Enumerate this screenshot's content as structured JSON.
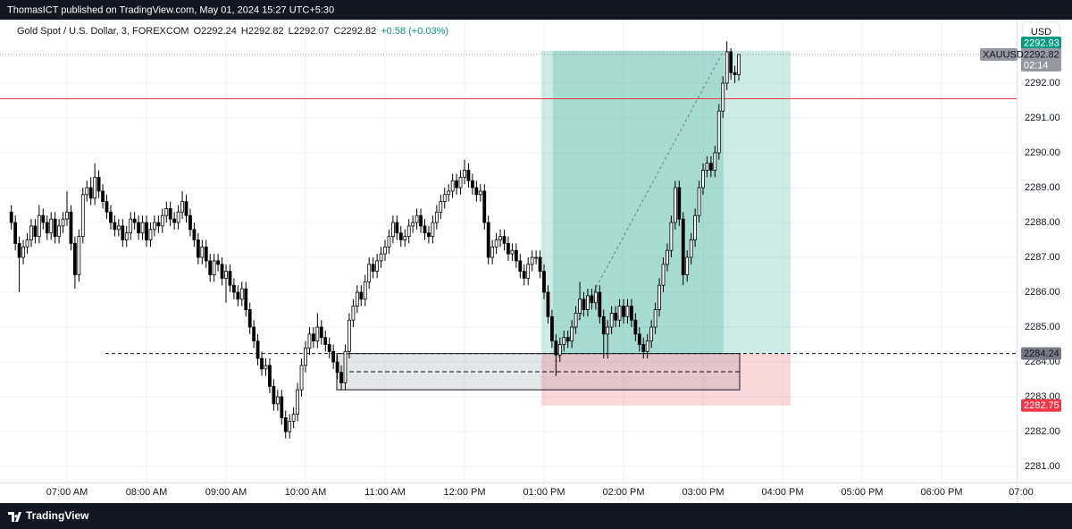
{
  "header": "ThomasICT published on TradingView.com, May 01, 2024 15:27 UTC+5:30",
  "footer_logo": "TradingView",
  "chart_data": {
    "type": "candlestick",
    "symbol": "Gold Spot / U.S. Dollar, 3, FOREXCOM",
    "legend_values": [
      "O2292.24",
      "H2292.82",
      "L2292.07",
      "C2292.82",
      "+0.58 (+0.03%)"
    ],
    "currency": "USD",
    "x": [
      "06:18 AM",
      "06:21 AM",
      "06:24 AM",
      "06:27 AM",
      "06:30 AM",
      "06:33 AM",
      "06:36 AM",
      "06:39 AM",
      "06:42 AM",
      "06:45 AM",
      "06:48 AM",
      "06:51 AM",
      "06:54 AM",
      "06:57 AM",
      "07:00 AM",
      "07:03 AM",
      "07:06 AM",
      "07:09 AM",
      "07:12 AM",
      "07:15 AM",
      "07:18 AM",
      "07:21 AM",
      "07:24 AM",
      "07:27 AM",
      "07:30 AM",
      "07:33 AM",
      "07:36 AM",
      "07:39 AM",
      "07:42 AM",
      "07:45 AM",
      "07:48 AM",
      "07:51 AM",
      "07:54 AM",
      "07:57 AM",
      "08:00 AM",
      "08:03 AM",
      "08:06 AM",
      "08:09 AM",
      "08:12 AM",
      "08:15 AM",
      "08:18 AM",
      "08:21 AM",
      "08:24 AM",
      "08:27 AM",
      "08:30 AM",
      "08:33 AM",
      "08:36 AM",
      "08:39 AM",
      "08:42 AM",
      "08:45 AM",
      "08:48 AM",
      "08:51 AM",
      "08:54 AM",
      "08:57 AM",
      "09:00 AM",
      "09:03 AM",
      "09:06 AM",
      "09:09 AM",
      "09:12 AM",
      "09:15 AM",
      "09:18 AM",
      "09:21 AM",
      "09:24 AM",
      "09:27 AM",
      "09:30 AM",
      "09:33 AM",
      "09:36 AM",
      "09:39 AM",
      "09:42 AM",
      "09:45 AM",
      "09:48 AM",
      "09:51 AM",
      "09:54 AM",
      "09:57 AM",
      "10:00 AM",
      "10:03 AM",
      "10:06 AM",
      "10:09 AM",
      "10:12 AM",
      "10:15 AM",
      "10:18 AM",
      "10:21 AM",
      "10:24 AM",
      "10:27 AM",
      "10:30 AM",
      "10:33 AM",
      "10:36 AM",
      "10:39 AM",
      "10:42 AM",
      "10:45 AM",
      "10:48 AM",
      "10:51 AM",
      "10:54 AM",
      "10:57 AM",
      "11:00 AM",
      "11:03 AM",
      "11:06 AM",
      "11:09 AM",
      "11:12 AM",
      "11:15 AM",
      "11:18 AM",
      "11:21 AM",
      "11:24 AM",
      "11:27 AM",
      "11:30 AM",
      "11:33 AM",
      "11:36 AM",
      "11:39 AM",
      "11:42 AM",
      "11:45 AM",
      "11:48 AM",
      "11:51 AM",
      "11:54 AM",
      "11:57 AM",
      "12:00 PM",
      "12:03 PM",
      "12:06 PM",
      "12:09 PM",
      "12:12 PM",
      "12:15 PM",
      "12:18 PM",
      "12:21 PM",
      "12:24 PM",
      "12:27 PM",
      "12:30 PM",
      "12:33 PM",
      "12:36 PM",
      "12:39 PM",
      "12:42 PM",
      "12:45 PM",
      "12:48 PM",
      "12:51 PM",
      "12:54 PM",
      "12:57 PM",
      "01:00 PM",
      "01:03 PM",
      "01:06 PM",
      "01:09 PM",
      "01:12 PM",
      "01:15 PM",
      "01:18 PM",
      "01:21 PM",
      "01:24 PM",
      "01:27 PM",
      "01:30 PM",
      "01:33 PM",
      "01:36 PM",
      "01:39 PM",
      "01:42 PM",
      "01:45 PM",
      "01:48 PM",
      "01:51 PM",
      "01:54 PM",
      "01:57 PM",
      "02:00 PM",
      "02:03 PM",
      "02:06 PM",
      "02:09 PM",
      "02:12 PM",
      "02:15 PM",
      "02:18 PM",
      "02:21 PM",
      "02:24 PM",
      "02:27 PM",
      "02:30 PM",
      "02:33 PM",
      "02:36 PM",
      "02:39 PM",
      "02:42 PM",
      "02:45 PM",
      "02:48 PM",
      "02:51 PM",
      "02:54 PM",
      "02:57 PM",
      "03:00 PM",
      "03:03 PM",
      "03:06 PM",
      "03:09 PM",
      "03:12 PM",
      "03:15 PM",
      "03:18 PM",
      "03:21 PM",
      "03:24 PM",
      "03:27 PM"
    ],
    "open": [
      2288.3,
      2288.0,
      2287.4,
      2287.0,
      2287.3,
      2287.5,
      2287.9,
      2287.6,
      2288.2,
      2288.0,
      2287.7,
      2288.1,
      2287.6,
      2287.9,
      2288.1,
      2288.3,
      2287.4,
      2286.5,
      2287.6,
      2288.8,
      2289.0,
      2288.7,
      2289.3,
      2288.9,
      2288.6,
      2288.3,
      2288.0,
      2287.8,
      2287.9,
      2287.5,
      2287.7,
      2288.1,
      2288.0,
      2287.7,
      2288.0,
      2287.5,
      2287.8,
      2288.0,
      2287.9,
      2288.2,
      2288.4,
      2288.1,
      2288.0,
      2288.3,
      2288.6,
      2288.2,
      2287.8,
      2287.5,
      2287.0,
      2287.3,
      2286.9,
      2286.5,
      2286.9,
      2286.8,
      2286.4,
      2286.6,
      2286.2,
      2286.0,
      2285.8,
      2286.1,
      2285.5,
      2285.0,
      2284.6,
      2284.1,
      2283.8,
      2283.9,
      2283.3,
      2282.8,
      2283.0,
      2282.4,
      2282.0,
      2282.3,
      2282.5,
      2283.2,
      2283.9,
      2284.4,
      2284.8,
      2284.6,
      2285.0,
      2284.7,
      2284.5,
      2284.3,
      2284.0,
      2283.7,
      2283.4,
      2284.3,
      2285.2,
      2285.6,
      2286.0,
      2285.8,
      2286.3,
      2286.8,
      2286.6,
      2286.9,
      2287.1,
      2287.3,
      2287.6,
      2288.0,
      2287.7,
      2287.5,
      2287.6,
      2287.9,
      2288.0,
      2288.2,
      2287.9,
      2287.7,
      2287.6,
      2288.0,
      2288.3,
      2288.6,
      2288.8,
      2288.9,
      2289.2,
      2289.0,
      2289.3,
      2289.5,
      2289.2,
      2289.0,
      2288.8,
      2288.9,
      2288.0,
      2287.0,
      2287.3,
      2287.5,
      2287.6,
      2287.4,
      2287.1,
      2287.2,
      2286.9,
      2286.6,
      2286.4,
      2286.8,
      2287.0,
      2287.0,
      2286.6,
      2286.0,
      2285.3,
      2284.6,
      2284.2,
      2284.5,
      2284.7,
      2284.6,
      2285.0,
      2285.4,
      2285.8,
      2285.5,
      2285.9,
      2285.7,
      2286.0,
      2285.3,
      2284.8,
      2285.0,
      2285.4,
      2285.2,
      2285.6,
      2285.3,
      2285.6,
      2285.2,
      2284.8,
      2284.5,
      2284.3,
      2284.6,
      2285.0,
      2285.5,
      2286.2,
      2286.8,
      2287.2,
      2288.0,
      2289.0,
      2288.1,
      2286.5,
      2287.0,
      2287.5,
      2288.2,
      2289.0,
      2289.5,
      2289.7,
      2289.5,
      2290.0,
      2291.2,
      2292.0,
      2292.9,
      2292.3,
      2292.24
    ],
    "high": [
      2288.5,
      2288.2,
      2287.6,
      2287.5,
      2287.7,
      2288.1,
      2288.1,
      2288.5,
      2288.4,
      2288.2,
      2288.3,
      2288.3,
      2288.1,
      2288.3,
      2288.9,
      2288.5,
      2287.6,
      2287.8,
      2289.0,
      2289.2,
      2289.3,
      2289.7,
      2289.5,
      2289.1,
      2288.8,
      2288.5,
      2288.2,
      2288.1,
      2288.1,
      2287.9,
      2288.3,
      2288.3,
      2288.2,
      2288.2,
      2288.2,
      2288.0,
      2288.2,
      2288.2,
      2288.4,
      2288.6,
      2288.6,
      2288.3,
      2288.5,
      2288.9,
      2288.8,
      2288.4,
      2288.0,
      2287.7,
      2287.5,
      2287.5,
      2287.1,
      2287.1,
      2287.1,
      2287.0,
      2286.8,
      2286.8,
      2286.4,
      2286.2,
      2286.3,
      2286.3,
      2285.7,
      2285.2,
      2284.8,
      2284.3,
      2284.1,
      2284.1,
      2283.5,
      2283.2,
      2283.2,
      2282.6,
      2282.5,
      2282.7,
      2283.4,
      2284.1,
      2284.6,
      2285.0,
      2285.0,
      2285.4,
      2285.2,
      2284.9,
      2284.7,
      2284.5,
      2284.2,
      2283.9,
      2284.5,
      2285.4,
      2285.8,
      2286.2,
      2286.2,
      2286.5,
      2287.0,
      2287.0,
      2287.1,
      2287.3,
      2287.5,
      2287.8,
      2288.2,
      2288.2,
      2287.9,
      2287.8,
      2288.1,
      2288.2,
      2288.4,
      2288.4,
      2288.1,
      2287.9,
      2288.2,
      2288.5,
      2288.8,
      2289.0,
      2289.1,
      2289.4,
      2289.4,
      2289.5,
      2289.8,
      2289.7,
      2289.4,
      2289.2,
      2289.1,
      2289.1,
      2288.2,
      2287.5,
      2287.7,
      2287.8,
      2287.8,
      2287.6,
      2287.4,
      2287.4,
      2287.1,
      2286.8,
      2287.0,
      2287.2,
      2287.2,
      2287.2,
      2286.8,
      2286.2,
      2285.5,
      2284.8,
      2284.7,
      2284.9,
      2284.9,
      2285.2,
      2285.6,
      2286.3,
      2286.0,
      2286.1,
      2286.1,
      2286.2,
      2286.2,
      2285.5,
      2285.2,
      2285.6,
      2285.6,
      2285.8,
      2285.8,
      2285.8,
      2285.8,
      2285.4,
      2285.0,
      2284.7,
      2284.8,
      2285.2,
      2285.7,
      2286.4,
      2287.0,
      2287.4,
      2288.2,
      2289.2,
      2289.2,
      2288.3,
      2287.2,
      2287.7,
      2288.4,
      2289.2,
      2289.7,
      2289.9,
      2289.9,
      2290.2,
      2291.4,
      2292.2,
      2293.2,
      2293.0,
      2292.5,
      2292.82
    ],
    "low": [
      2287.8,
      2287.2,
      2286.0,
      2286.8,
      2287.1,
      2287.3,
      2287.4,
      2287.4,
      2287.8,
      2287.5,
      2287.5,
      2287.4,
      2287.4,
      2287.7,
      2287.9,
      2287.2,
      2286.1,
      2286.3,
      2287.4,
      2288.6,
      2288.5,
      2288.5,
      2288.7,
      2288.4,
      2288.1,
      2287.8,
      2287.6,
      2287.6,
      2287.3,
      2287.3,
      2287.5,
      2287.8,
      2287.5,
      2287.5,
      2287.3,
      2287.3,
      2287.6,
      2287.7,
      2287.7,
      2288.0,
      2287.9,
      2287.8,
      2287.8,
      2288.1,
      2288.0,
      2287.6,
      2287.3,
      2286.8,
      2286.8,
      2286.7,
      2286.3,
      2286.3,
      2286.6,
      2286.2,
      2285.7,
      2286.0,
      2285.8,
      2285.6,
      2285.6,
      2285.3,
      2284.8,
      2284.4,
      2283.9,
      2283.6,
      2283.6,
      2283.1,
      2282.6,
      2282.6,
      2282.2,
      2281.8,
      2281.8,
      2282.1,
      2282.3,
      2283.0,
      2283.7,
      2284.2,
      2284.4,
      2284.4,
      2284.5,
      2284.3,
      2284.1,
      2283.8,
      2283.5,
      2283.2,
      2283.2,
      2284.1,
      2285.0,
      2285.4,
      2285.6,
      2285.6,
      2286.1,
      2286.4,
      2286.4,
      2286.7,
      2286.9,
      2287.1,
      2287.4,
      2287.5,
      2287.3,
      2287.3,
      2287.4,
      2287.7,
      2287.8,
      2287.7,
      2287.5,
      2287.4,
      2287.4,
      2287.8,
      2288.1,
      2288.4,
      2288.6,
      2288.7,
      2288.8,
      2288.8,
      2289.1,
      2289.0,
      2288.8,
      2288.6,
      2288.6,
      2287.8,
      2286.8,
      2286.8,
      2287.1,
      2287.3,
      2287.2,
      2286.9,
      2286.9,
      2286.7,
      2286.4,
      2286.2,
      2286.2,
      2286.6,
      2286.8,
      2286.4,
      2285.8,
      2285.1,
      2284.4,
      2283.6,
      2284.0,
      2284.3,
      2284.4,
      2284.4,
      2284.8,
      2285.2,
      2285.3,
      2285.3,
      2285.5,
      2285.5,
      2285.1,
      2284.1,
      2284.1,
      2284.8,
      2285.0,
      2285.0,
      2285.1,
      2285.1,
      2285.0,
      2284.6,
      2284.3,
      2284.1,
      2284.1,
      2284.4,
      2284.8,
      2285.3,
      2286.0,
      2286.6,
      2287.0,
      2287.8,
      2287.9,
      2286.2,
      2286.3,
      2286.8,
      2287.3,
      2288.0,
      2288.8,
      2289.3,
      2289.3,
      2289.3,
      2289.8,
      2291.0,
      2291.8,
      2292.1,
      2292.0,
      2292.07
    ],
    "close": [
      2288.0,
      2287.4,
      2287.0,
      2287.3,
      2287.5,
      2287.9,
      2287.6,
      2288.2,
      2288.0,
      2287.7,
      2288.1,
      2287.6,
      2287.9,
      2288.1,
      2288.3,
      2287.4,
      2286.5,
      2287.6,
      2288.8,
      2289.0,
      2288.7,
      2289.3,
      2288.9,
      2288.6,
      2288.3,
      2288.0,
      2287.8,
      2287.9,
      2287.5,
      2287.7,
      2288.1,
      2288.0,
      2287.7,
      2288.0,
      2287.5,
      2287.8,
      2288.0,
      2287.9,
      2288.2,
      2288.4,
      2288.1,
      2288.0,
      2288.3,
      2288.6,
      2288.2,
      2287.8,
      2287.5,
      2287.0,
      2287.3,
      2286.9,
      2286.5,
      2286.9,
      2286.8,
      2286.4,
      2286.6,
      2286.2,
      2286.0,
      2285.8,
      2286.1,
      2285.5,
      2285.0,
      2284.6,
      2284.1,
      2283.8,
      2283.9,
      2283.3,
      2282.8,
      2283.0,
      2282.4,
      2282.0,
      2282.3,
      2282.5,
      2283.2,
      2283.9,
      2284.4,
      2284.8,
      2284.6,
      2285.0,
      2284.7,
      2284.5,
      2284.3,
      2284.0,
      2283.7,
      2283.4,
      2284.3,
      2285.2,
      2285.6,
      2286.0,
      2285.8,
      2286.3,
      2286.8,
      2286.6,
      2286.9,
      2287.1,
      2287.3,
      2287.6,
      2288.0,
      2287.7,
      2287.5,
      2287.6,
      2287.9,
      2288.0,
      2288.2,
      2287.9,
      2287.7,
      2287.6,
      2288.0,
      2288.3,
      2288.6,
      2288.8,
      2288.9,
      2289.2,
      2289.0,
      2289.3,
      2289.5,
      2289.2,
      2289.0,
      2288.8,
      2288.9,
      2288.0,
      2287.0,
      2287.3,
      2287.5,
      2287.6,
      2287.4,
      2287.1,
      2287.2,
      2286.9,
      2286.6,
      2286.4,
      2286.8,
      2287.0,
      2287.0,
      2286.6,
      2286.0,
      2285.3,
      2284.6,
      2284.2,
      2284.5,
      2284.7,
      2284.6,
      2285.0,
      2285.4,
      2285.8,
      2285.5,
      2285.9,
      2285.7,
      2286.0,
      2285.3,
      2284.8,
      2285.0,
      2285.4,
      2285.2,
      2285.6,
      2285.3,
      2285.6,
      2285.2,
      2284.8,
      2284.5,
      2284.3,
      2284.6,
      2285.0,
      2285.5,
      2286.2,
      2286.8,
      2287.2,
      2288.0,
      2289.0,
      2288.1,
      2286.5,
      2287.0,
      2287.5,
      2288.2,
      2289.0,
      2289.5,
      2289.7,
      2289.5,
      2290.0,
      2291.2,
      2292.0,
      2292.9,
      2292.3,
      2292.24,
      2292.82
    ],
    "up_color": "#ffffff",
    "down_color": "#000000",
    "edge_color": "#000000",
    "ylim": [
      2280.54,
      2293.82
    ],
    "yticks": [
      {
        "value": 2281,
        "label": "2281.00"
      },
      {
        "value": 2282,
        "label": "2282.00"
      },
      {
        "value": 2283,
        "label": "2283.00"
      },
      {
        "value": 2284,
        "label": "2284.00"
      },
      {
        "value": 2285,
        "label": "2285.00"
      },
      {
        "value": 2286,
        "label": "2286.00"
      },
      {
        "value": 2287,
        "label": "2287.00"
      },
      {
        "value": 2288,
        "label": "2288.00"
      },
      {
        "value": 2289,
        "label": "2289.00"
      },
      {
        "value": 2290,
        "label": "2290.00"
      },
      {
        "value": 2291,
        "label": "2291.00"
      },
      {
        "value": 2292,
        "label": "2292.00"
      }
    ],
    "xticks": [
      "07:00 AM",
      "08:00 AM",
      "09:00 AM",
      "10:00 AM",
      "11:00 AM",
      "12:00 PM",
      "01:00 PM",
      "02:00 PM",
      "03:00 PM",
      "04:00 PM",
      "05:00 PM",
      "06:00 PM",
      "07:00"
    ],
    "grid": true,
    "last_price": {
      "symbol": "XAUUSD",
      "value": 2292.82,
      "countdown": "02:14"
    },
    "position": {
      "target": 2292.93,
      "entry": 2284.24,
      "stop": 2282.75
    },
    "horizontal_line": 2291.55,
    "zone": [
      2284.24,
      2283.2
    ]
  }
}
